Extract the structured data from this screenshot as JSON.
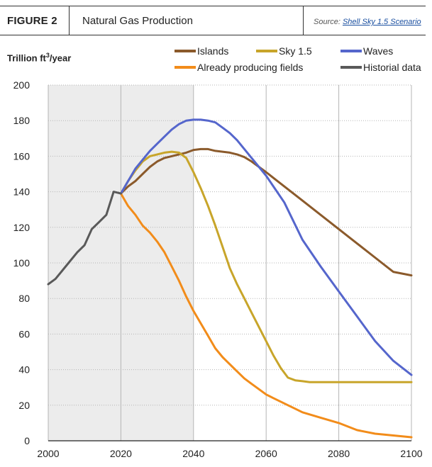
{
  "header": {
    "figure_label": "FIGURE 2",
    "title": "Natural Gas Production",
    "source_prefix": "Source: ",
    "source_link": "Shell Sky 1.5 Scenario"
  },
  "y_axis_label": {
    "main": "Trillion ft",
    "sup": "3",
    "tail": "/year"
  },
  "colors": {
    "islands": "#8b5a2b",
    "sky": "#c8a52a",
    "waves": "#5566cc",
    "already": "#f28c1a",
    "historical": "#595959",
    "shade": "#ececec",
    "grid": "#b5b5b5"
  },
  "chart_data": {
    "type": "line",
    "title": "Natural Gas Production",
    "ylabel": "Trillion ft3/year",
    "xlabel": "",
    "xlim": [
      2000,
      2100
    ],
    "ylim": [
      0,
      200
    ],
    "x_ticks": [
      2000,
      2020,
      2040,
      2060,
      2080,
      2100
    ],
    "y_ticks": [
      0,
      20,
      40,
      60,
      80,
      100,
      120,
      140,
      160,
      180,
      200
    ],
    "shaded_region": [
      2000,
      2040
    ],
    "legend_position": "top",
    "series": [
      {
        "name": "Islands",
        "key": "islands",
        "x": [
          2020,
          2022,
          2024,
          2026,
          2028,
          2030,
          2032,
          2034,
          2036,
          2038,
          2040,
          2042,
          2044,
          2046,
          2048,
          2050,
          2052,
          2054,
          2056,
          2058,
          2060,
          2065,
          2070,
          2075,
          2080,
          2085,
          2090,
          2095,
          2100
        ],
        "y": [
          139,
          143,
          146,
          150,
          154,
          157,
          159,
          160,
          161,
          162,
          163.5,
          164,
          164,
          163,
          162.5,
          162,
          161,
          159.5,
          157,
          154,
          151,
          143,
          135,
          127,
          119,
          111,
          103,
          95,
          93
        ]
      },
      {
        "name": "Sky 1.5",
        "key": "sky",
        "x": [
          2020,
          2022,
          2024,
          2026,
          2028,
          2030,
          2032,
          2034,
          2036,
          2038,
          2040,
          2042,
          2044,
          2046,
          2048,
          2050,
          2052,
          2054,
          2056,
          2058,
          2060,
          2062,
          2064,
          2066,
          2068,
          2070,
          2072,
          2075,
          2080,
          2085,
          2090,
          2095,
          2100
        ],
        "y": [
          139,
          146,
          152,
          157,
          160,
          161,
          162,
          162.5,
          162,
          159,
          151,
          142,
          132,
          121,
          109,
          97,
          88,
          80,
          72,
          64,
          56,
          48,
          41,
          35.5,
          34,
          33.5,
          33,
          33,
          33,
          33,
          33,
          33,
          33
        ]
      },
      {
        "name": "Waves",
        "key": "waves",
        "x": [
          2020,
          2022,
          2024,
          2026,
          2028,
          2030,
          2032,
          2034,
          2036,
          2038,
          2040,
          2042,
          2044,
          2046,
          2048,
          2050,
          2052,
          2054,
          2056,
          2058,
          2060,
          2065,
          2070,
          2075,
          2080,
          2085,
          2090,
          2095,
          2100
        ],
        "y": [
          139,
          146,
          153,
          158,
          163,
          167,
          171,
          175,
          178,
          180,
          180.5,
          180.5,
          180,
          179,
          176,
          173,
          169,
          164,
          159,
          154,
          149,
          134,
          113,
          98,
          84,
          70,
          56,
          45,
          37
        ]
      },
      {
        "name": "Already producing fields",
        "key": "already",
        "x": [
          2020,
          2022,
          2024,
          2026,
          2028,
          2030,
          2032,
          2034,
          2036,
          2038,
          2040,
          2042,
          2044,
          2046,
          2048,
          2050,
          2052,
          2054,
          2056,
          2058,
          2060,
          2062,
          2064,
          2066,
          2068,
          2070,
          2075,
          2080,
          2085,
          2090,
          2095,
          2100
        ],
        "y": [
          139,
          132,
          127,
          121,
          117,
          112,
          106,
          98,
          90,
          81,
          73,
          66,
          59,
          52,
          47,
          43,
          39,
          35,
          32,
          29,
          26,
          24,
          22,
          20,
          18,
          16,
          13,
          10,
          6,
          4,
          3,
          2
        ]
      },
      {
        "name": "Historial data",
        "key": "historical",
        "x": [
          2000,
          2002,
          2004,
          2006,
          2008,
          2010,
          2012,
          2014,
          2016,
          2018,
          2020
        ],
        "y": [
          88,
          91,
          96,
          101,
          106,
          110,
          119,
          123,
          127,
          140,
          139
        ]
      }
    ]
  }
}
